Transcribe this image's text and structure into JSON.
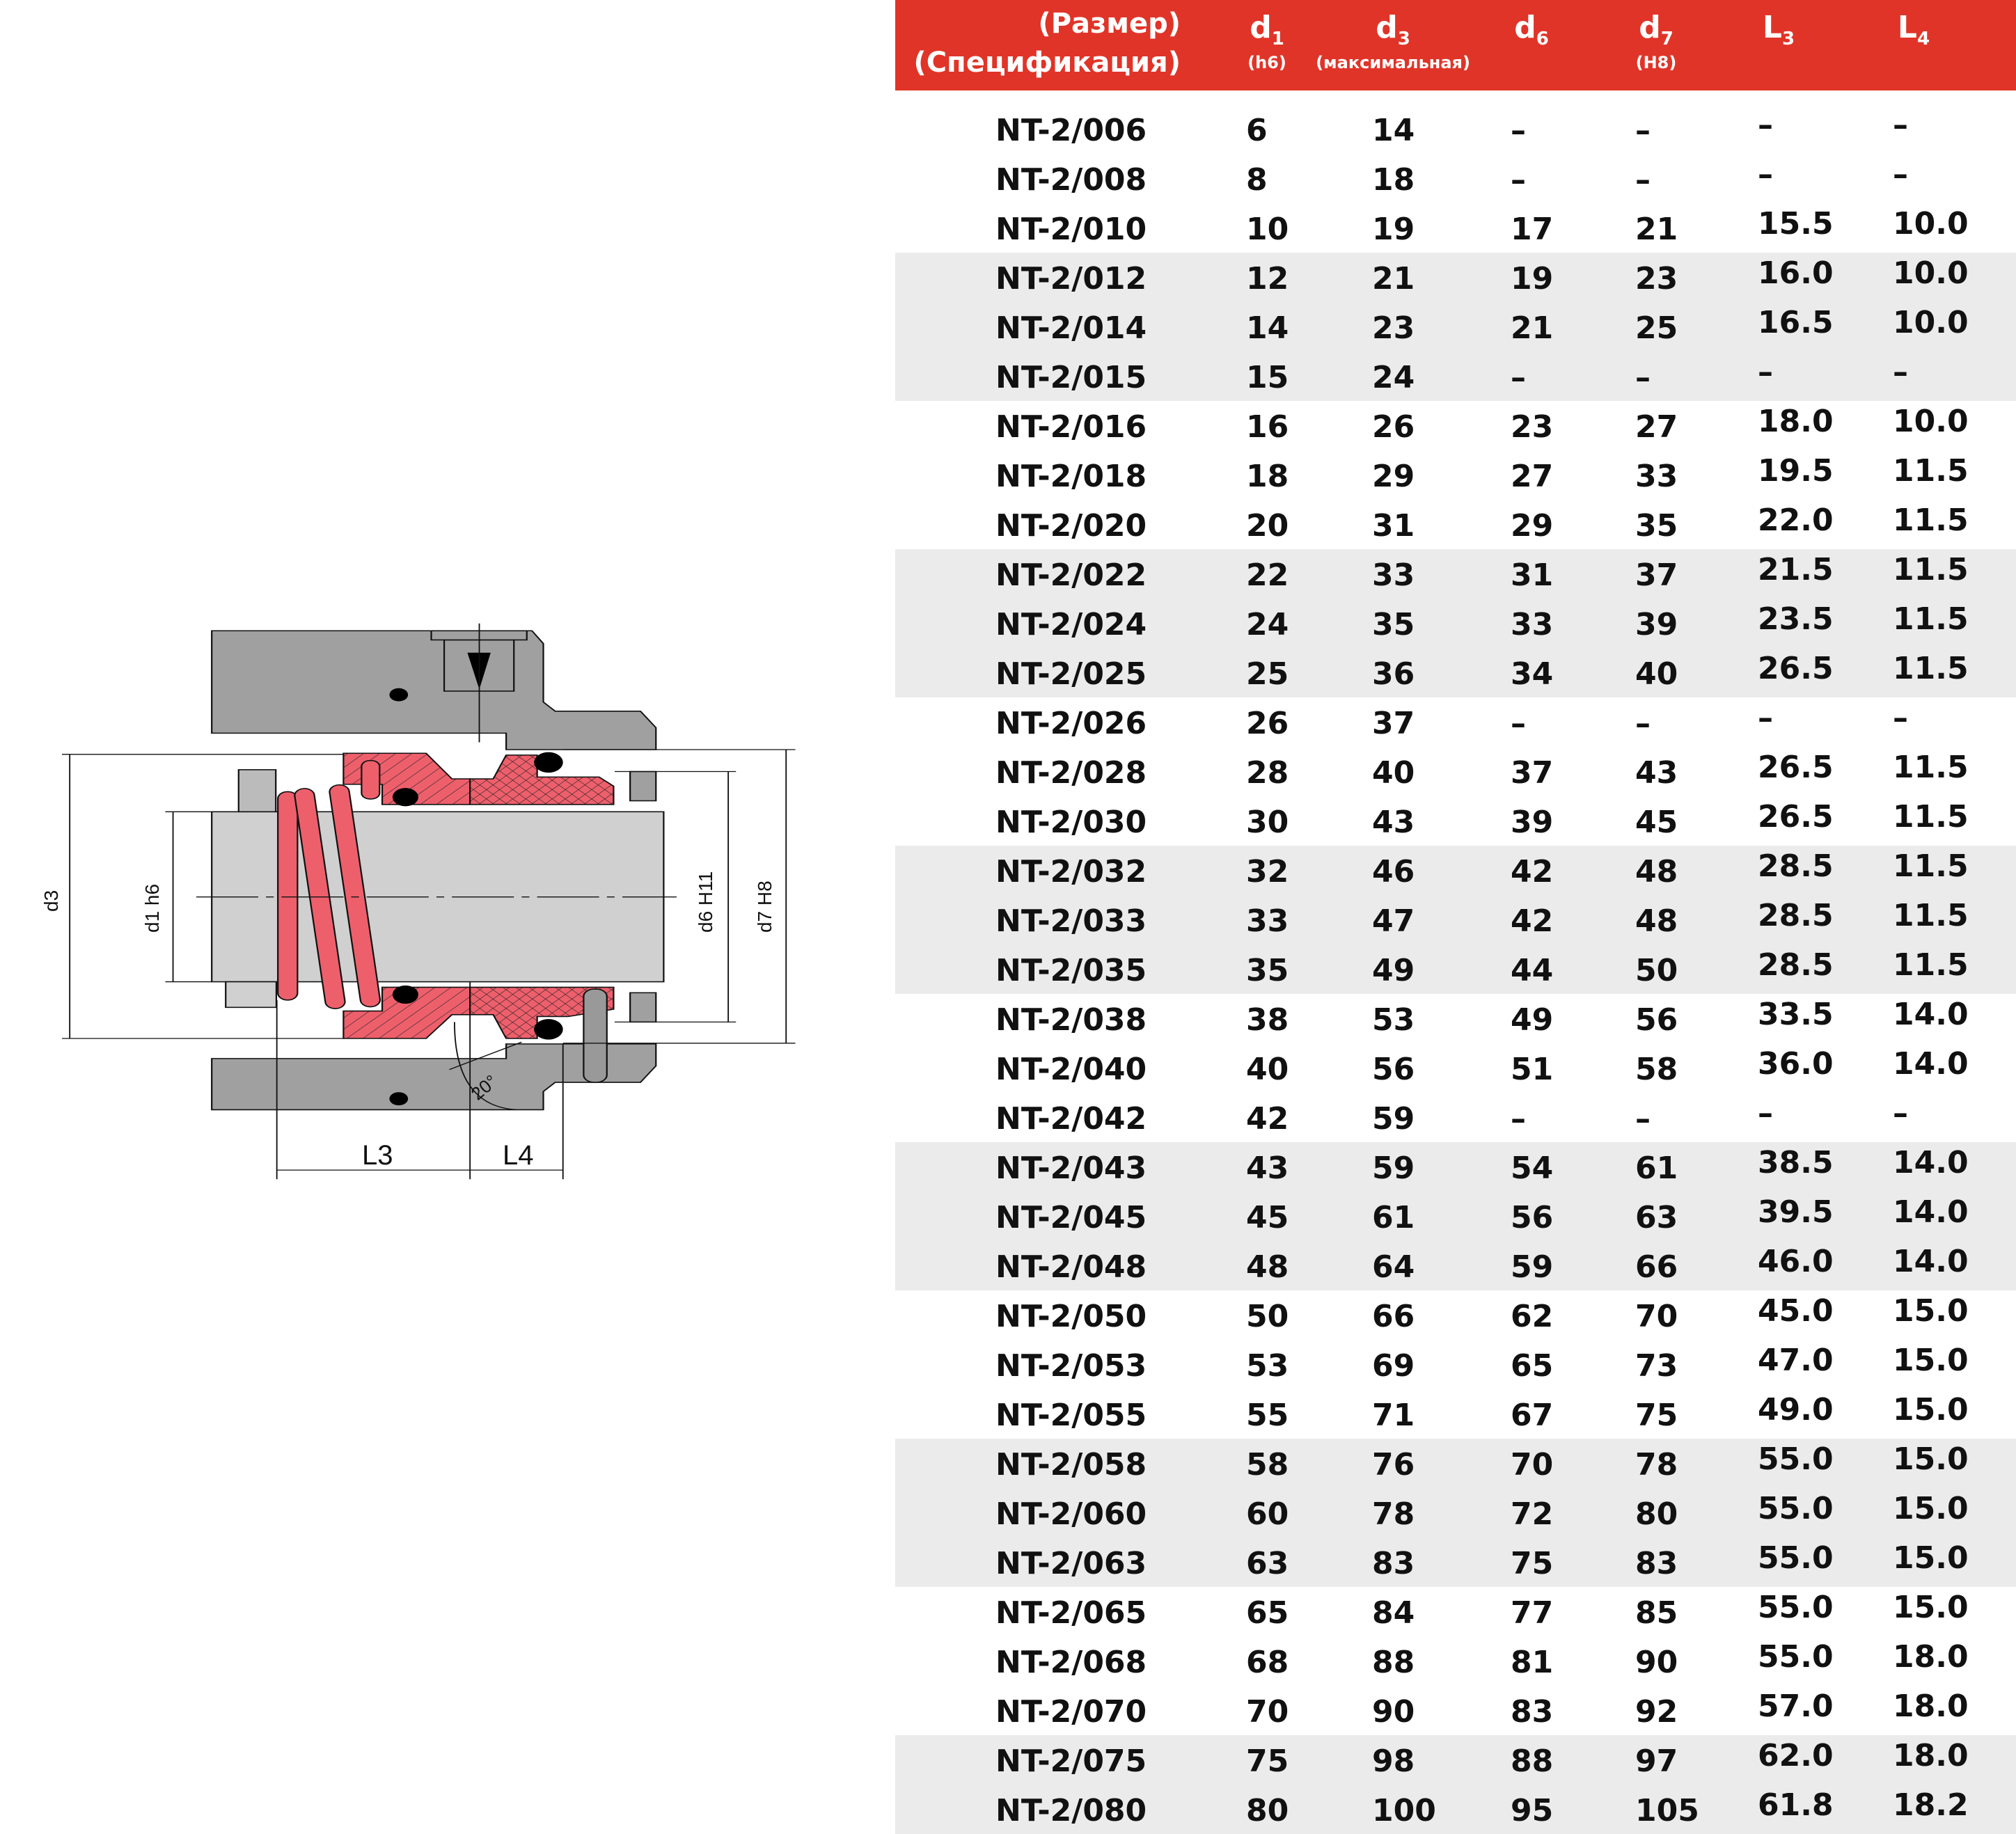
{
  "diagram": {
    "labels": {
      "d3": "d3",
      "d1": "d1 h6",
      "d6": "d6 H11",
      "d7": "d7 H8",
      "L3": "L3",
      "L4": "L4",
      "angle": "20°"
    },
    "colors": {
      "housing": "#a0a0a0",
      "shaft": "#d0d0d0",
      "rotating": "#ee5f6c",
      "oring": "#000000"
    }
  },
  "table": {
    "header": {
      "name_line1": "(Размер)",
      "name_line2": "(Спецификация)",
      "cols": [
        {
          "sym": "d",
          "sub": "1",
          "note": "(h6)"
        },
        {
          "sym": "d",
          "sub": "3",
          "note": "(максимальная)"
        },
        {
          "sym": "d",
          "sub": "6",
          "note": ""
        },
        {
          "sym": "d",
          "sub": "7",
          "note": "(H8)"
        },
        {
          "sym": "L",
          "sub": "3",
          "note": ""
        },
        {
          "sym": "L",
          "sub": "4",
          "note": ""
        }
      ]
    },
    "accent": "#e03428",
    "shade": "#ebebeb",
    "rows": [
      [
        "NT-2/006",
        "6",
        "14",
        "–",
        "–",
        "–",
        "–"
      ],
      [
        "NT-2/008",
        "8",
        "18",
        "–",
        "–",
        "–",
        "–"
      ],
      [
        "NT-2/010",
        "10",
        "19",
        "17",
        "21",
        "15.5",
        "10.0"
      ],
      [
        "NT-2/012",
        "12",
        "21",
        "19",
        "23",
        "16.0",
        "10.0"
      ],
      [
        "NT-2/014",
        "14",
        "23",
        "21",
        "25",
        "16.5",
        "10.0"
      ],
      [
        "NT-2/015",
        "15",
        "24",
        "–",
        "–",
        "–",
        "–"
      ],
      [
        "NT-2/016",
        "16",
        "26",
        "23",
        "27",
        "18.0",
        "10.0"
      ],
      [
        "NT-2/018",
        "18",
        "29",
        "27",
        "33",
        "19.5",
        "11.5"
      ],
      [
        "NT-2/020",
        "20",
        "31",
        "29",
        "35",
        "22.0",
        "11.5"
      ],
      [
        "NT-2/022",
        "22",
        "33",
        "31",
        "37",
        "21.5",
        "11.5"
      ],
      [
        "NT-2/024",
        "24",
        "35",
        "33",
        "39",
        "23.5",
        "11.5"
      ],
      [
        "NT-2/025",
        "25",
        "36",
        "34",
        "40",
        "26.5",
        "11.5"
      ],
      [
        "NT-2/026",
        "26",
        "37",
        "–",
        "–",
        "–",
        "–"
      ],
      [
        "NT-2/028",
        "28",
        "40",
        "37",
        "43",
        "26.5",
        "11.5"
      ],
      [
        "NT-2/030",
        "30",
        "43",
        "39",
        "45",
        "26.5",
        "11.5"
      ],
      [
        "NT-2/032",
        "32",
        "46",
        "42",
        "48",
        "28.5",
        "11.5"
      ],
      [
        "NT-2/033",
        "33",
        "47",
        "42",
        "48",
        "28.5",
        "11.5"
      ],
      [
        "NT-2/035",
        "35",
        "49",
        "44",
        "50",
        "28.5",
        "11.5"
      ],
      [
        "NT-2/038",
        "38",
        "53",
        "49",
        "56",
        "33.5",
        "14.0"
      ],
      [
        "NT-2/040",
        "40",
        "56",
        "51",
        "58",
        "36.0",
        "14.0"
      ],
      [
        "NT-2/042",
        "42",
        "59",
        "–",
        "–",
        "–",
        "–"
      ],
      [
        "NT-2/043",
        "43",
        "59",
        "54",
        "61",
        "38.5",
        "14.0"
      ],
      [
        "NT-2/045",
        "45",
        "61",
        "56",
        "63",
        "39.5",
        "14.0"
      ],
      [
        "NT-2/048",
        "48",
        "64",
        "59",
        "66",
        "46.0",
        "14.0"
      ],
      [
        "NT-2/050",
        "50",
        "66",
        "62",
        "70",
        "45.0",
        "15.0"
      ],
      [
        "NT-2/053",
        "53",
        "69",
        "65",
        "73",
        "47.0",
        "15.0"
      ],
      [
        "NT-2/055",
        "55",
        "71",
        "67",
        "75",
        "49.0",
        "15.0"
      ],
      [
        "NT-2/058",
        "58",
        "76",
        "70",
        "78",
        "55.0",
        "15.0"
      ],
      [
        "NT-2/060",
        "60",
        "78",
        "72",
        "80",
        "55.0",
        "15.0"
      ],
      [
        "NT-2/063",
        "63",
        "83",
        "75",
        "83",
        "55.0",
        "15.0"
      ],
      [
        "NT-2/065",
        "65",
        "84",
        "77",
        "85",
        "55.0",
        "15.0"
      ],
      [
        "NT-2/068",
        "68",
        "88",
        "81",
        "90",
        "55.0",
        "18.0"
      ],
      [
        "NT-2/070",
        "70",
        "90",
        "83",
        "92",
        "57.0",
        "18.0"
      ],
      [
        "NT-2/075",
        "75",
        "98",
        "88",
        "97",
        "62.0",
        "18.0"
      ],
      [
        "NT-2/080",
        "80",
        "100",
        "95",
        "105",
        "61.8",
        "18.2"
      ]
    ]
  }
}
